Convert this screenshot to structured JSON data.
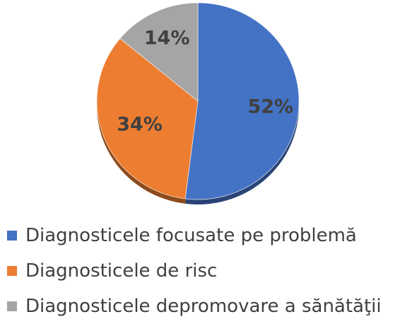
{
  "chart_data": {
    "type": "pie",
    "title": "",
    "labels": [
      "Diagnosticele focusate pe problemă",
      "Diagnosticele de risc",
      "Diagnosticele depromovare a sănătăţii"
    ],
    "values": [
      52,
      34,
      14
    ],
    "data_labels": [
      "52%",
      "34%",
      "14%"
    ],
    "colors": [
      "#4472C4",
      "#ED7D31",
      "#A5A5A5"
    ],
    "legend_position": "bottom",
    "start_angle_deg": 0,
    "direction": "clockwise",
    "style": "3d-tilted"
  }
}
